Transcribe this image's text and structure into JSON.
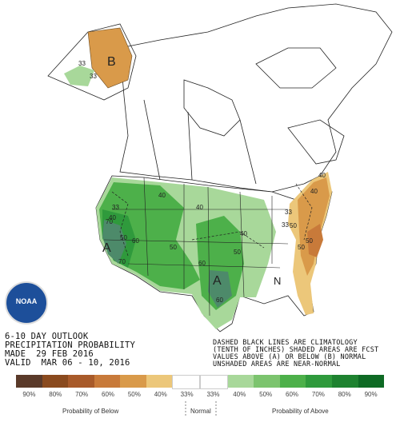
{
  "map": {
    "region_labels": [
      "A",
      "A",
      "B",
      "N"
    ],
    "contour_labels": [
      "33",
      "33",
      "40",
      "33",
      "40",
      "50",
      "60",
      "70",
      "40",
      "60",
      "50",
      "70",
      "40",
      "50",
      "60",
      "50",
      "33",
      "40",
      "33",
      "50",
      "40",
      "50",
      "60",
      "50",
      "60",
      "33",
      "40",
      "50",
      "33",
      "40"
    ]
  },
  "title": {
    "line1": "6-10 DAY OUTLOOK",
    "line2": "PRECIPITATION PROBABILITY",
    "line3": "MADE  29 FEB 2016",
    "line4": "VALID  MAR 06 - 10, 2016"
  },
  "legend_note": {
    "line1": "DASHED BLACK LINES ARE CLIMATOLOGY",
    "line2": "(TENTH OF INCHES) SHADED AREAS ARE FCST",
    "line3": "VALUES ABOVE (A) OR BELOW (B) NORMAL",
    "line4": "UNSHADED AREAS ARE NEAR-NORMAL"
  },
  "logo": {
    "text": "NOAA"
  },
  "legend": {
    "colors": [
      "#5a3a2a",
      "#8a4a1e",
      "#a85a2a",
      "#c87a3a",
      "#d99a4a",
      "#ecc77a",
      "#ffffff",
      "#ffffff",
      "#a8d89a",
      "#7cc46e",
      "#4db04a",
      "#2f9a3c",
      "#1e8230",
      "#0e6a24"
    ],
    "labels": [
      "90%",
      "80%",
      "70%",
      "60%",
      "50%",
      "40%",
      "33%",
      "33%",
      "40%",
      "50%",
      "60%",
      "70%",
      "80%",
      "90%"
    ],
    "below_label": "Probability of Below",
    "normal_label": "Normal",
    "above_label": "Probability of Above"
  }
}
